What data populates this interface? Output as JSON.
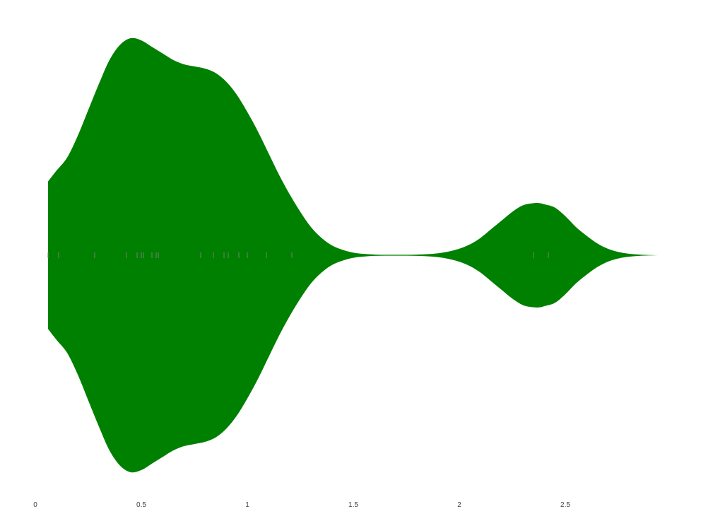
{
  "chart_data": {
    "type": "violin",
    "orientation": "horizontal",
    "title": "",
    "xlabel": "",
    "ylabel": "",
    "xlim": [
      0,
      3
    ],
    "grid": false,
    "legend": "none",
    "x_ticks": [
      0,
      0.5,
      1,
      1.5,
      2,
      2.5
    ],
    "x_tick_labels": [
      "0",
      "0.5",
      "1",
      "1.5",
      "2",
      "2.5"
    ],
    "colors": {
      "fill": "#008000",
      "rug": "#7d7d7d",
      "tick_label": "#444444"
    },
    "observations": [
      0.06,
      0.11,
      0.28,
      0.43,
      0.48,
      0.5,
      0.51,
      0.55,
      0.57,
      0.58,
      0.78,
      0.84,
      0.89,
      0.91,
      0.96,
      1.0,
      1.09,
      1.21,
      2.35,
      2.42
    ],
    "density_profile": {
      "x": [
        0.06,
        0.1,
        0.15,
        0.2,
        0.25,
        0.3,
        0.35,
        0.4,
        0.45,
        0.5,
        0.55,
        0.6,
        0.65,
        0.7,
        0.75,
        0.8,
        0.85,
        0.9,
        0.95,
        1.0,
        1.05,
        1.1,
        1.15,
        1.2,
        1.25,
        1.3,
        1.35,
        1.4,
        1.45,
        1.5,
        1.55,
        1.6,
        1.65,
        1.7,
        1.75,
        1.8,
        1.85,
        1.9,
        1.95,
        2.0,
        2.05,
        2.1,
        2.15,
        2.2,
        2.25,
        2.3,
        2.35,
        2.38,
        2.4,
        2.45,
        2.5,
        2.55,
        2.6,
        2.65,
        2.7,
        2.75,
        2.8,
        2.85,
        2.9,
        2.94
      ],
      "width": [
        0.34,
        0.39,
        0.45,
        0.55,
        0.67,
        0.79,
        0.9,
        0.97,
        1.0,
        0.99,
        0.96,
        0.93,
        0.9,
        0.88,
        0.87,
        0.86,
        0.84,
        0.8,
        0.74,
        0.66,
        0.57,
        0.47,
        0.37,
        0.28,
        0.2,
        0.13,
        0.08,
        0.045,
        0.025,
        0.012,
        0.006,
        0.003,
        0.002,
        0.002,
        0.002,
        0.003,
        0.005,
        0.009,
        0.017,
        0.03,
        0.05,
        0.08,
        0.12,
        0.16,
        0.2,
        0.23,
        0.24,
        0.24,
        0.235,
        0.22,
        0.18,
        0.13,
        0.09,
        0.055,
        0.03,
        0.015,
        0.007,
        0.003,
        0.001,
        0.0
      ]
    }
  }
}
